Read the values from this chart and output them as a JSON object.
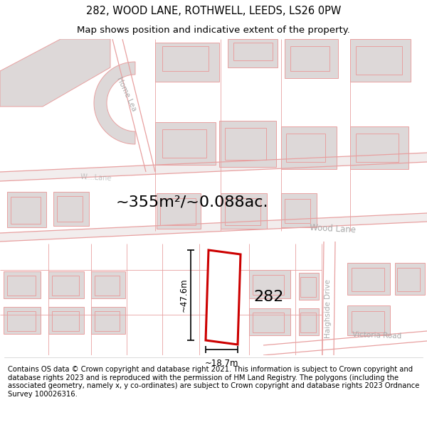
{
  "title": "282, WOOD LANE, ROTHWELL, LEEDS, LS26 0PW",
  "subtitle": "Map shows position and indicative extent of the property.",
  "footer": "Contains OS data © Crown copyright and database right 2021. This information is subject to Crown copyright and database rights 2023 and is reproduced with the permission of HM Land Registry. The polygons (including the associated geometry, namely x, y co-ordinates) are subject to Crown copyright and database rights 2023 Ordnance Survey 100026316.",
  "bg_color": "#f2eded",
  "bld_fill": "#ddd8d8",
  "bld_edge": "#e8a0a0",
  "road_edge": "#e8a0a0",
  "plot_fill": "#ffffff",
  "plot_edge": "#cc0000",
  "area_text": "~355m²/~0.088ac.",
  "property_number": "282",
  "dim_width": "~18.7m",
  "dim_height": "~47.6m",
  "title_fontsize": 10.5,
  "subtitle_fontsize": 9.5,
  "footer_fontsize": 7.2,
  "area_fontsize": 16,
  "number_fontsize": 16,
  "dim_fontsize": 8.5,
  "street_label_color": "#aaaaaa",
  "street_fontsize": 8.5
}
